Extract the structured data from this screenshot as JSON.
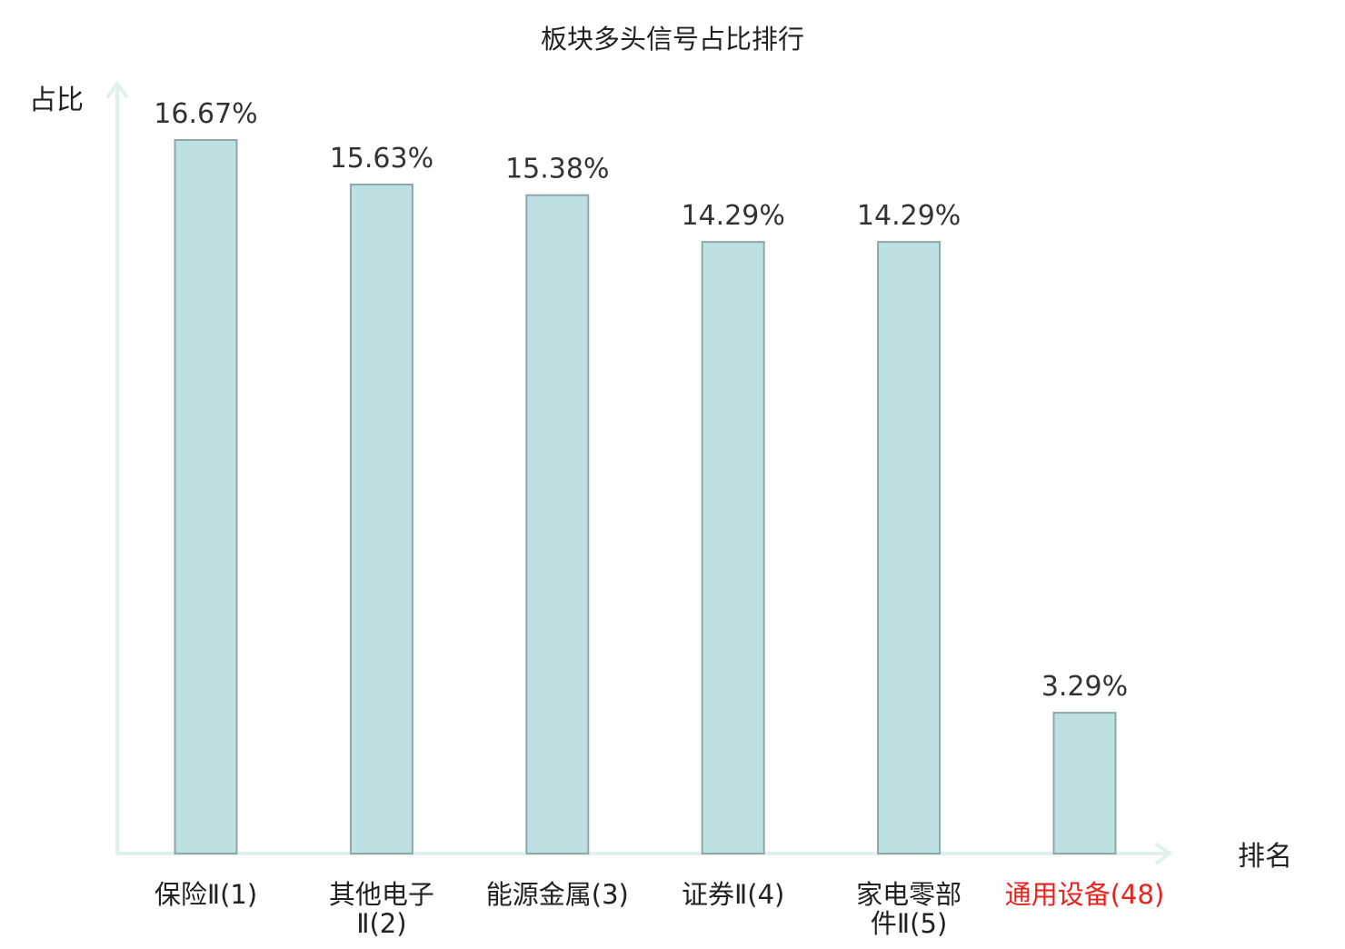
{
  "chart_data": {
    "type": "bar",
    "title": "板块多头信号占比排行",
    "xlabel": "排名",
    "ylabel": "占比",
    "ylim": [
      0,
      18
    ],
    "grid": false,
    "legend": "none",
    "categories": [
      [
        "保险Ⅱ(1)"
      ],
      [
        "其他电子",
        "Ⅱ(2)"
      ],
      [
        "能源金属(3)"
      ],
      [
        "证券Ⅱ(4)"
      ],
      [
        "家电零部",
        "件Ⅱ(5)"
      ],
      [
        "通用设备(48)"
      ]
    ],
    "values": [
      16.67,
      15.63,
      15.38,
      14.29,
      14.29,
      3.29
    ],
    "value_labels": [
      "16.67%",
      "15.63%",
      "15.38%",
      "14.29%",
      "14.29%",
      "3.29%"
    ],
    "highlight_index": 5
  },
  "colors": {
    "bar_fill": "#bde0e3",
    "bar_stroke": "#8ea8aa",
    "axis": "#dff1ef",
    "highlight_text": "#e8231e",
    "text": "#222222"
  }
}
